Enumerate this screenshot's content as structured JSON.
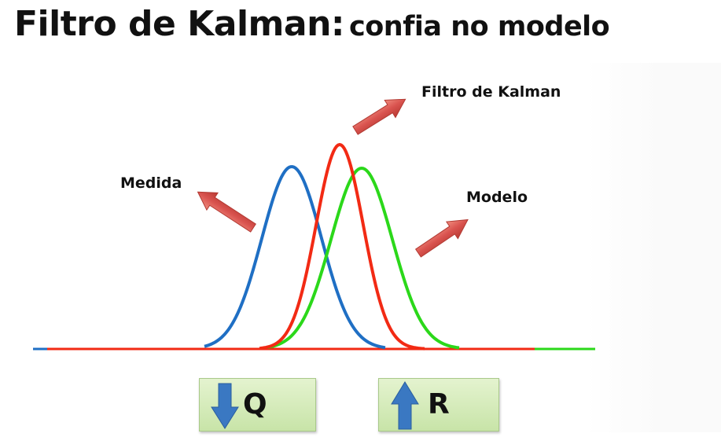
{
  "title": {
    "main": "Filtro de Kalman:",
    "sub": "confia no modelo"
  },
  "labels": {
    "kalman": "Filtro de Kalman",
    "medida": "Medida",
    "modelo": "Modelo"
  },
  "curves": [
    {
      "label_ref": "medida",
      "color": "#1f6fc4"
    },
    {
      "label_ref": "kalman",
      "color": "#f22a14"
    },
    {
      "label_ref": "modelo",
      "color": "#2bd81a"
    }
  ],
  "buttons": {
    "q": {
      "letter": "Q",
      "arrow": "down-arrow-icon"
    },
    "r": {
      "letter": "R",
      "arrow": "up-arrow-icon"
    }
  },
  "colors": {
    "arrow_fill": "#d9534f",
    "box_fill": "#d6ecbc",
    "box_arrow": "#3a78c2"
  }
}
